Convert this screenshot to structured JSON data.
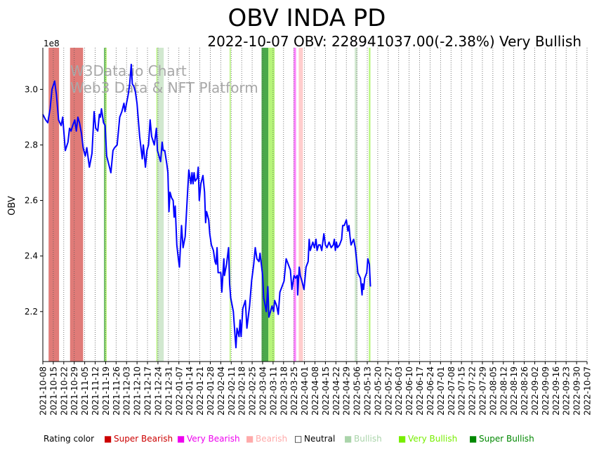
{
  "chart_data": {
    "type": "line",
    "title": "OBV INDA PD",
    "subtitle": "2022-10-07 OBV: 228941037.00(-2.38%) Very Bullish",
    "xlabel": "",
    "ylabel": "OBV",
    "y_scale_label": "1e8",
    "ylim": [
      2.02,
      3.15
    ],
    "yticks": [
      2.2,
      2.4,
      2.6,
      2.8,
      3.0
    ],
    "ytick_labels": [
      "2.2",
      "2.4",
      "2.6",
      "2.8",
      "3.0"
    ],
    "watermark": [
      "W3Data.io Chart",
      "Web3 Data & NFT Platform"
    ],
    "x_dates": [
      "2021-10-08",
      "2021-10-15",
      "2021-10-22",
      "2021-10-29",
      "2021-11-05",
      "2021-11-12",
      "2021-11-19",
      "2021-11-26",
      "2021-12-03",
      "2021-12-10",
      "2021-12-17",
      "2021-12-24",
      "2021-12-31",
      "2022-01-07",
      "2022-01-14",
      "2022-01-21",
      "2022-01-28",
      "2022-02-04",
      "2022-02-11",
      "2022-02-18",
      "2022-02-25",
      "2022-03-04",
      "2022-03-11",
      "2022-03-18",
      "2022-03-25",
      "2022-04-01",
      "2022-04-08",
      "2022-04-15",
      "2022-04-22",
      "2022-04-29",
      "2022-05-06",
      "2022-05-13",
      "2022-05-20",
      "2022-05-27",
      "2022-06-03",
      "2022-06-10",
      "2022-06-17",
      "2022-06-24",
      "2022-07-01",
      "2022-07-08",
      "2022-07-15",
      "2022-07-22",
      "2022-07-29",
      "2022-08-05",
      "2022-08-12",
      "2022-08-19",
      "2022-08-26",
      "2022-09-02",
      "2022-09-09",
      "2022-09-16",
      "2022-09-23",
      "2022-09-30",
      "2022-10-07"
    ],
    "series": [
      {
        "name": "OBV",
        "color": "#0000ff",
        "points": [
          [
            0,
            2.91
          ],
          [
            0.27,
            2.89
          ],
          [
            0.47,
            2.88
          ],
          [
            0.7,
            2.93
          ],
          [
            0.87,
            3.0
          ],
          [
            1.13,
            3.03
          ],
          [
            1.3,
            2.98
          ],
          [
            1.5,
            2.89
          ],
          [
            1.75,
            2.87
          ],
          [
            1.9,
            2.9
          ],
          [
            2.15,
            2.78
          ],
          [
            2.4,
            2.81
          ],
          [
            2.55,
            2.86
          ],
          [
            2.7,
            2.85
          ],
          [
            2.85,
            2.87
          ],
          [
            3.05,
            2.89
          ],
          [
            3.2,
            2.85
          ],
          [
            3.35,
            2.9
          ],
          [
            3.5,
            2.88
          ],
          [
            3.7,
            2.84
          ],
          [
            3.85,
            2.79
          ],
          [
            4.05,
            2.76
          ],
          [
            4.2,
            2.79
          ],
          [
            4.45,
            2.72
          ],
          [
            4.7,
            2.77
          ],
          [
            4.9,
            2.92
          ],
          [
            5.05,
            2.86
          ],
          [
            5.25,
            2.85
          ],
          [
            5.4,
            2.91
          ],
          [
            5.5,
            2.9
          ],
          [
            5.6,
            2.93
          ],
          [
            5.8,
            2.88
          ],
          [
            5.95,
            2.87
          ],
          [
            6.1,
            2.76
          ],
          [
            6.3,
            2.73
          ],
          [
            6.5,
            2.7
          ],
          [
            6.7,
            2.78
          ],
          [
            6.85,
            2.79
          ],
          [
            7.1,
            2.8
          ],
          [
            7.35,
            2.9
          ],
          [
            7.55,
            2.92
          ],
          [
            7.75,
            2.95
          ],
          [
            7.85,
            2.92
          ],
          [
            8.0,
            2.95
          ],
          [
            8.15,
            2.98
          ],
          [
            8.3,
            3.02
          ],
          [
            8.45,
            3.09
          ],
          [
            8.55,
            3.02
          ],
          [
            8.7,
            3.01
          ],
          [
            8.85,
            2.99
          ],
          [
            9.0,
            2.95
          ],
          [
            9.25,
            2.83
          ],
          [
            9.5,
            2.75
          ],
          [
            9.6,
            2.8
          ],
          [
            9.8,
            2.72
          ],
          [
            9.95,
            2.78
          ],
          [
            10.1,
            2.8
          ],
          [
            10.25,
            2.89
          ],
          [
            10.4,
            2.83
          ],
          [
            10.65,
            2.8
          ],
          [
            10.85,
            2.86
          ],
          [
            10.95,
            2.78
          ],
          [
            11.25,
            2.74
          ],
          [
            11.4,
            2.81
          ],
          [
            11.5,
            2.78
          ],
          [
            11.65,
            2.78
          ],
          [
            11.85,
            2.73
          ],
          [
            11.95,
            2.7
          ],
          [
            12.05,
            2.56
          ],
          [
            12.15,
            2.63
          ],
          [
            12.3,
            2.61
          ],
          [
            12.45,
            2.6
          ],
          [
            12.55,
            2.54
          ],
          [
            12.65,
            2.58
          ],
          [
            12.8,
            2.44
          ],
          [
            12.95,
            2.39
          ],
          [
            13.05,
            2.36
          ],
          [
            13.25,
            2.51
          ],
          [
            13.4,
            2.43
          ],
          [
            13.6,
            2.47
          ],
          [
            13.8,
            2.61
          ],
          [
            13.95,
            2.71
          ],
          [
            14.15,
            2.66
          ],
          [
            14.25,
            2.7
          ],
          [
            14.35,
            2.66
          ],
          [
            14.45,
            2.7
          ],
          [
            14.55,
            2.67
          ],
          [
            14.75,
            2.68
          ],
          [
            14.85,
            2.72
          ],
          [
            14.95,
            2.6
          ],
          [
            15.1,
            2.66
          ],
          [
            15.3,
            2.69
          ],
          [
            15.45,
            2.63
          ],
          [
            15.55,
            2.52
          ],
          [
            15.65,
            2.56
          ],
          [
            15.85,
            2.53
          ],
          [
            15.95,
            2.48
          ],
          [
            16.1,
            2.44
          ],
          [
            16.3,
            2.42
          ],
          [
            16.45,
            2.38
          ],
          [
            16.55,
            2.37
          ],
          [
            16.65,
            2.43
          ],
          [
            16.75,
            2.34
          ],
          [
            17.0,
            2.34
          ],
          [
            17.1,
            2.27
          ],
          [
            17.3,
            2.39
          ],
          [
            17.35,
            2.33
          ],
          [
            17.55,
            2.37
          ],
          [
            17.75,
            2.43
          ],
          [
            17.85,
            2.3
          ],
          [
            17.95,
            2.25
          ],
          [
            18.2,
            2.2
          ],
          [
            18.35,
            2.12
          ],
          [
            18.45,
            2.07
          ],
          [
            18.55,
            2.14
          ],
          [
            18.75,
            2.11
          ],
          [
            18.85,
            2.17
          ],
          [
            18.95,
            2.11
          ],
          [
            19.1,
            2.21
          ],
          [
            19.35,
            2.24
          ],
          [
            19.5,
            2.14
          ],
          [
            19.75,
            2.22
          ],
          [
            19.95,
            2.31
          ],
          [
            20.15,
            2.37
          ],
          [
            20.3,
            2.43
          ],
          [
            20.45,
            2.39
          ],
          [
            20.65,
            2.38
          ],
          [
            20.75,
            2.41
          ],
          [
            21.0,
            2.33
          ],
          [
            21.1,
            2.25
          ],
          [
            21.2,
            2.23
          ],
          [
            21.35,
            2.2
          ],
          [
            21.5,
            2.29
          ],
          [
            21.6,
            2.18
          ],
          [
            21.75,
            2.2
          ],
          [
            21.9,
            2.22
          ],
          [
            22.05,
            2.2
          ],
          [
            22.15,
            2.24
          ],
          [
            22.35,
            2.22
          ],
          [
            22.5,
            2.19
          ],
          [
            22.65,
            2.27
          ],
          [
            22.85,
            2.29
          ],
          [
            23.05,
            2.31
          ],
          [
            23.25,
            2.39
          ],
          [
            23.45,
            2.37
          ],
          [
            23.65,
            2.35
          ],
          [
            23.8,
            2.28
          ],
          [
            24.0,
            2.33
          ],
          [
            24.15,
            2.32
          ],
          [
            24.3,
            2.33
          ],
          [
            24.35,
            2.26
          ],
          [
            24.5,
            2.36
          ],
          [
            24.6,
            2.33
          ],
          [
            24.75,
            2.31
          ],
          [
            24.95,
            2.28
          ],
          [
            25.15,
            2.36
          ],
          [
            25.35,
            2.38
          ],
          [
            25.45,
            2.46
          ],
          [
            25.55,
            2.42
          ],
          [
            25.8,
            2.45
          ],
          [
            25.95,
            2.43
          ],
          [
            26.1,
            2.46
          ],
          [
            26.2,
            2.42
          ],
          [
            26.35,
            2.44
          ],
          [
            26.5,
            2.44
          ],
          [
            26.65,
            2.42
          ],
          [
            26.85,
            2.48
          ],
          [
            27.0,
            2.44
          ],
          [
            27.15,
            2.43
          ],
          [
            27.35,
            2.45
          ],
          [
            27.55,
            2.43
          ],
          [
            27.75,
            2.44
          ],
          [
            27.85,
            2.46
          ],
          [
            27.95,
            2.42
          ],
          [
            28.05,
            2.45
          ],
          [
            28.15,
            2.43
          ],
          [
            28.35,
            2.44
          ],
          [
            28.55,
            2.46
          ],
          [
            28.65,
            2.51
          ],
          [
            28.8,
            2.51
          ],
          [
            29.0,
            2.53
          ],
          [
            29.15,
            2.49
          ],
          [
            29.25,
            2.51
          ],
          [
            29.35,
            2.47
          ],
          [
            29.45,
            2.44
          ],
          [
            29.7,
            2.46
          ],
          [
            29.85,
            2.43
          ],
          [
            30.0,
            2.38
          ],
          [
            30.1,
            2.34
          ],
          [
            30.35,
            2.32
          ],
          [
            30.5,
            2.26
          ],
          [
            30.55,
            2.3
          ],
          [
            30.65,
            2.28
          ],
          [
            30.75,
            2.32
          ],
          [
            30.95,
            2.34
          ],
          [
            31.05,
            2.39
          ],
          [
            31.2,
            2.37
          ],
          [
            31.3,
            2.29
          ]
        ]
      }
    ],
    "rating_bands": [
      {
        "from": 0.55,
        "to": 1.55,
        "rating": "Bearish-red"
      },
      {
        "from": 2.6,
        "to": 3.85,
        "rating": "Bearish-red"
      },
      {
        "from": 5.85,
        "to": 5.95,
        "rating": "Super Bullish"
      },
      {
        "from": 5.95,
        "to": 6.1,
        "rating": "Very Bullish"
      },
      {
        "from": 10.85,
        "to": 10.95,
        "rating": "Very Bullish"
      },
      {
        "from": 10.95,
        "to": 11.55,
        "rating": "Bullish"
      },
      {
        "from": 17.85,
        "to": 17.95,
        "rating": "Very Bullish"
      },
      {
        "from": 20.9,
        "to": 21.55,
        "rating": "Super Bullish"
      },
      {
        "from": 21.55,
        "to": 22.15,
        "rating": "Very Bullish"
      },
      {
        "from": 23.95,
        "to": 24.2,
        "rating": "Very Bearish"
      },
      {
        "from": 24.45,
        "to": 24.85,
        "rating": "Bearish"
      },
      {
        "from": 29.8,
        "to": 30.05,
        "rating": "Bullish"
      },
      {
        "from": 31.15,
        "to": 31.3,
        "rating": "Very Bullish"
      }
    ],
    "band_colors": {
      "Bearish-red": "#e07b78",
      "Super Bullish": "#4aa84a",
      "Very Bullish": "#b6f57a",
      "Bullish": "#d1e8cf",
      "Very Bearish": "#ff88ff",
      "Bearish": "#ffcccc"
    },
    "legend": {
      "title": "Rating color",
      "items": [
        {
          "label": "Super Bearish",
          "color": "#cc0000"
        },
        {
          "label": "Very Bearish",
          "color": "#ee00ee"
        },
        {
          "label": "Bearish",
          "color": "#ffaaaa"
        },
        {
          "label": "Neutral",
          "color": "#000000"
        },
        {
          "label": "Bullish",
          "color": "#aad4aa"
        },
        {
          "label": "Very Bullish",
          "color": "#77ee00"
        },
        {
          "label": "Super Bullish",
          "color": "#008800"
        }
      ]
    }
  }
}
